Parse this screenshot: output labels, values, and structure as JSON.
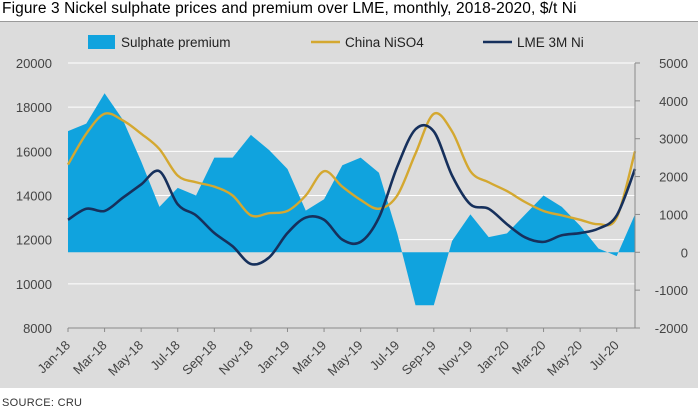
{
  "figure_title": "Figure 3 Nickel sulphate prices and premium over LME, monthly, 2018-2020, $/t Ni",
  "source_text": "SOURCE: CRU",
  "colors": {
    "panel_bg": "#dcdcdc",
    "premium_fill": "#10a3de",
    "china_line": "#d4a830",
    "lme_line": "#16305c"
  },
  "chart_data": {
    "type": "line",
    "title": "Figure 3 Nickel sulphate prices and premium over LME, monthly, 2018-2020, $/t Ni",
    "x_categories": [
      "Jan-18",
      "Feb-18",
      "Mar-18",
      "Apr-18",
      "May-18",
      "Jun-18",
      "Jul-18",
      "Aug-18",
      "Sep-18",
      "Oct-18",
      "Nov-18",
      "Dec-18",
      "Jan-19",
      "Feb-19",
      "Mar-19",
      "Apr-19",
      "May-19",
      "Jun-19",
      "Jul-19",
      "Aug-19",
      "Sep-19",
      "Oct-19",
      "Nov-19",
      "Dec-19",
      "Jan-20",
      "Feb-20",
      "Mar-20",
      "Apr-20",
      "May-20",
      "Jun-20",
      "Jul-20",
      "Aug-20"
    ],
    "x_tick_labels": [
      "Jan-18",
      "Mar-18",
      "May-18",
      "Jul-18",
      "Sep-18",
      "Nov-18",
      "Jan-19",
      "Mar-19",
      "May-19",
      "Jul-19",
      "Sep-19",
      "Nov-19",
      "Jan-20",
      "Mar-20",
      "May-20",
      "Jul-20"
    ],
    "left_axis": {
      "ylim": [
        8000,
        20000
      ],
      "ticks": [
        "8000",
        "10000",
        "12000",
        "14000",
        "16000",
        "18000",
        "20000"
      ]
    },
    "right_axis": {
      "ylim": [
        -2000,
        5000
      ],
      "ticks": [
        "-2000",
        "-1000",
        "0",
        "1000",
        "2000",
        "3000",
        "4000",
        "5000"
      ]
    },
    "legend_position": "top",
    "series": [
      {
        "name": "Sulphate premium",
        "type": "area",
        "axis": "right",
        "values": [
          3200,
          3400,
          4200,
          3500,
          2400,
          1200,
          1700,
          1500,
          2500,
          2500,
          3100,
          2700,
          2200,
          1100,
          1400,
          2300,
          2500,
          2100,
          500,
          -1400,
          -1400,
          300,
          1000,
          400,
          500,
          1000,
          1500,
          1200,
          700,
          100,
          -100,
          1000
        ]
      },
      {
        "name": "China NiSO4",
        "type": "line",
        "axis": "left",
        "values": [
          15400,
          16800,
          17700,
          17400,
          16800,
          16100,
          14900,
          14600,
          14400,
          14000,
          13100,
          13200,
          13300,
          14000,
          15100,
          14400,
          13800,
          13400,
          14000,
          15900,
          17700,
          16900,
          15100,
          14600,
          14200,
          13700,
          13300,
          13100,
          12900,
          12700,
          13000,
          16000
        ]
      },
      {
        "name": "LME 3M Ni",
        "type": "line",
        "axis": "left",
        "values": [
          12900,
          13400,
          13300,
          13900,
          14500,
          15100,
          13600,
          13100,
          12300,
          11700,
          10900,
          11200,
          12300,
          13000,
          12900,
          12000,
          11900,
          13000,
          15300,
          17000,
          16900,
          14900,
          13600,
          13400,
          12700,
          12100,
          11900,
          12200,
          12300,
          12500,
          13100,
          15200
        ]
      }
    ]
  }
}
